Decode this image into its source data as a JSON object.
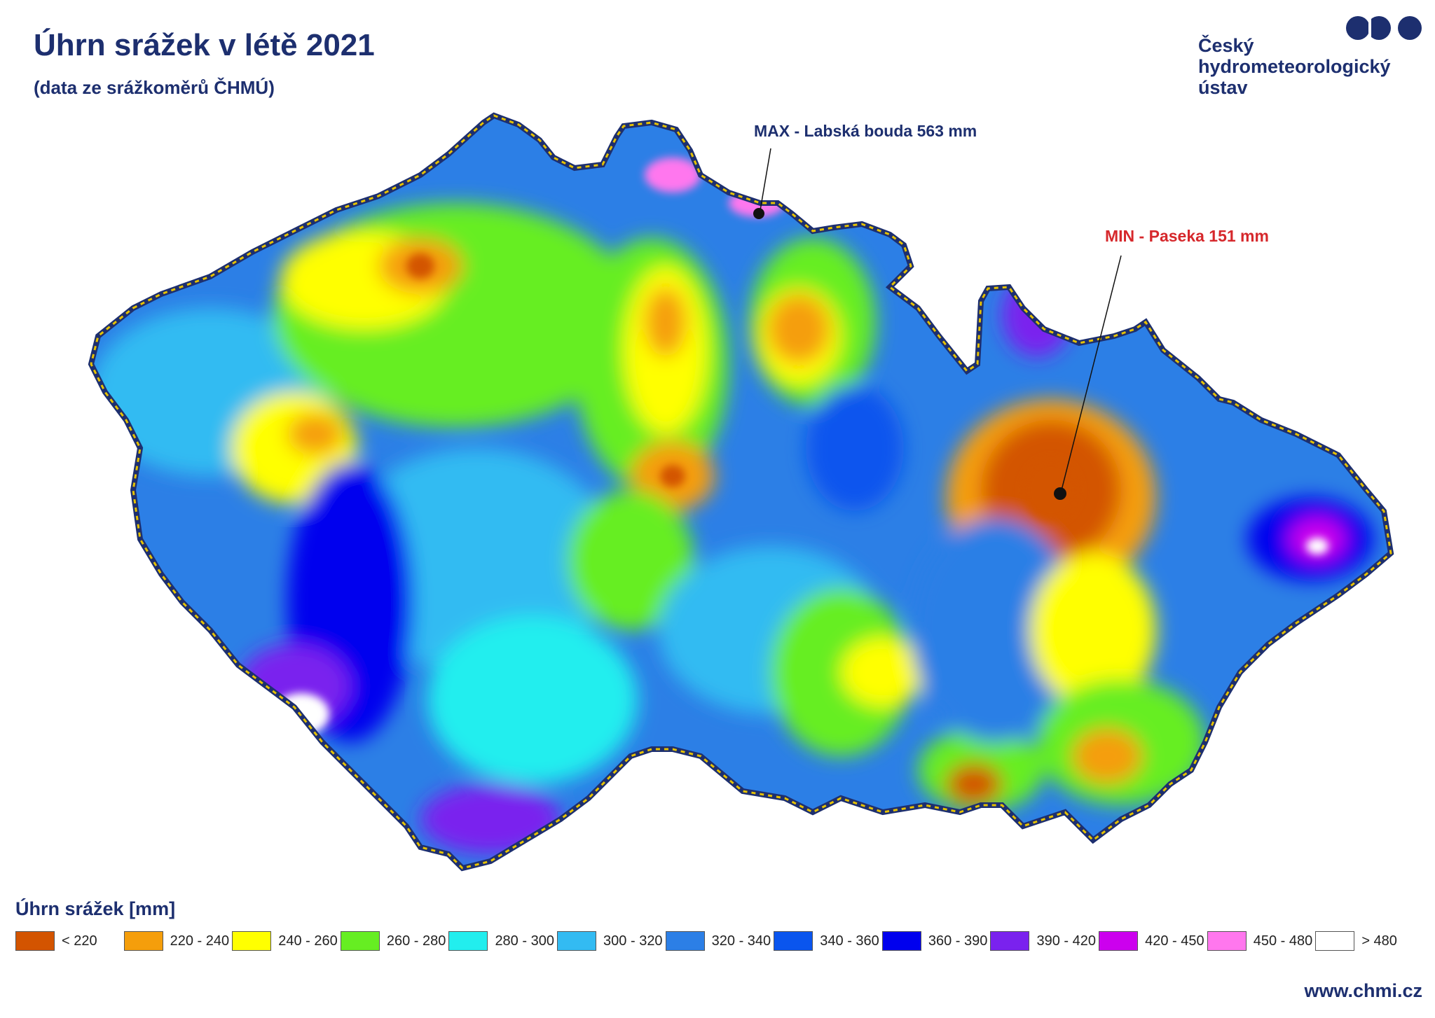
{
  "header": {
    "title": "Úhrn srážek v létě 2021",
    "subtitle": "(data ze srážkoměrů ČHMÚ)"
  },
  "logo": {
    "line1": "Český",
    "line2": "hydrometeorologický",
    "line3": "ústav",
    "color": "#1d2f6f"
  },
  "annotations": {
    "max_label": "MAX - Labská bouda 563 mm",
    "min_label": "MIN - Paseka 151 mm",
    "max_color": "#1d2f6f",
    "min_color": "#d6282c"
  },
  "legend": {
    "title": "Úhrn srážek [mm]",
    "items": [
      {
        "label": "< 220",
        "color": "#d35400"
      },
      {
        "label": "220 - 240",
        "color": "#f59e0b"
      },
      {
        "label": "240 - 260",
        "color": "#ffff00"
      },
      {
        "label": "260 - 280",
        "color": "#66ee22"
      },
      {
        "label": "280 - 300",
        "color": "#22eeee"
      },
      {
        "label": "300 - 320",
        "color": "#33bbf2"
      },
      {
        "label": "320 - 340",
        "color": "#2c7fe6"
      },
      {
        "label": "340 - 360",
        "color": "#0a55ee"
      },
      {
        "label": "360 - 390",
        "color": "#0000ee"
      },
      {
        "label": "390 - 420",
        "color": "#7a22ee"
      },
      {
        "label": "420 - 450",
        "color": "#cc00ee"
      },
      {
        "label": "450 - 480",
        "color": "#ff77ee"
      },
      {
        "label": "> 480",
        "color": "#ffffff"
      }
    ]
  },
  "footer": {
    "url": "www.chmi.cz"
  }
}
